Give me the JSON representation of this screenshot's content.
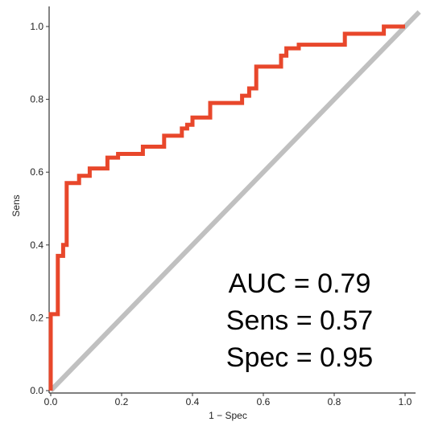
{
  "chart_data": {
    "type": "line",
    "xlabel": "1 − Spec",
    "ylabel": "Sens",
    "xlim": [
      0,
      1
    ],
    "ylim": [
      0,
      1
    ],
    "x_ticks": [
      "0.0",
      "0.2",
      "0.4",
      "0.6",
      "0.8",
      "1.0"
    ],
    "y_ticks": [
      "0.0",
      "0.2",
      "0.4",
      "0.6",
      "0.8",
      "1.0"
    ],
    "grid": false,
    "series": [
      {
        "color": "#e8472b",
        "points": [
          [
            0.0,
            0.0
          ],
          [
            0.0,
            0.21
          ],
          [
            0.02,
            0.21
          ],
          [
            0.02,
            0.37
          ],
          [
            0.035,
            0.37
          ],
          [
            0.035,
            0.4
          ],
          [
            0.045,
            0.4
          ],
          [
            0.045,
            0.57
          ],
          [
            0.08,
            0.57
          ],
          [
            0.08,
            0.59
          ],
          [
            0.11,
            0.59
          ],
          [
            0.11,
            0.61
          ],
          [
            0.16,
            0.61
          ],
          [
            0.16,
            0.64
          ],
          [
            0.19,
            0.64
          ],
          [
            0.19,
            0.65
          ],
          [
            0.26,
            0.65
          ],
          [
            0.26,
            0.67
          ],
          [
            0.32,
            0.67
          ],
          [
            0.32,
            0.7
          ],
          [
            0.37,
            0.7
          ],
          [
            0.37,
            0.72
          ],
          [
            0.385,
            0.72
          ],
          [
            0.385,
            0.73
          ],
          [
            0.4,
            0.73
          ],
          [
            0.4,
            0.75
          ],
          [
            0.45,
            0.75
          ],
          [
            0.45,
            0.79
          ],
          [
            0.54,
            0.79
          ],
          [
            0.54,
            0.81
          ],
          [
            0.56,
            0.81
          ],
          [
            0.56,
            0.83
          ],
          [
            0.58,
            0.83
          ],
          [
            0.58,
            0.89
          ],
          [
            0.65,
            0.89
          ],
          [
            0.65,
            0.92
          ],
          [
            0.665,
            0.92
          ],
          [
            0.665,
            0.94
          ],
          [
            0.7,
            0.94
          ],
          [
            0.7,
            0.95
          ],
          [
            0.83,
            0.95
          ],
          [
            0.83,
            0.98
          ],
          [
            0.94,
            0.98
          ],
          [
            0.94,
            1.0
          ],
          [
            1.0,
            1.0
          ]
        ]
      },
      {
        "color": "#c0c0c0",
        "points": [
          [
            0,
            0
          ],
          [
            1.04,
            1.04
          ]
        ]
      }
    ],
    "annotations": [
      "AUC = 0.79",
      "Sens = 0.57",
      "Spec = 0.95"
    ]
  }
}
